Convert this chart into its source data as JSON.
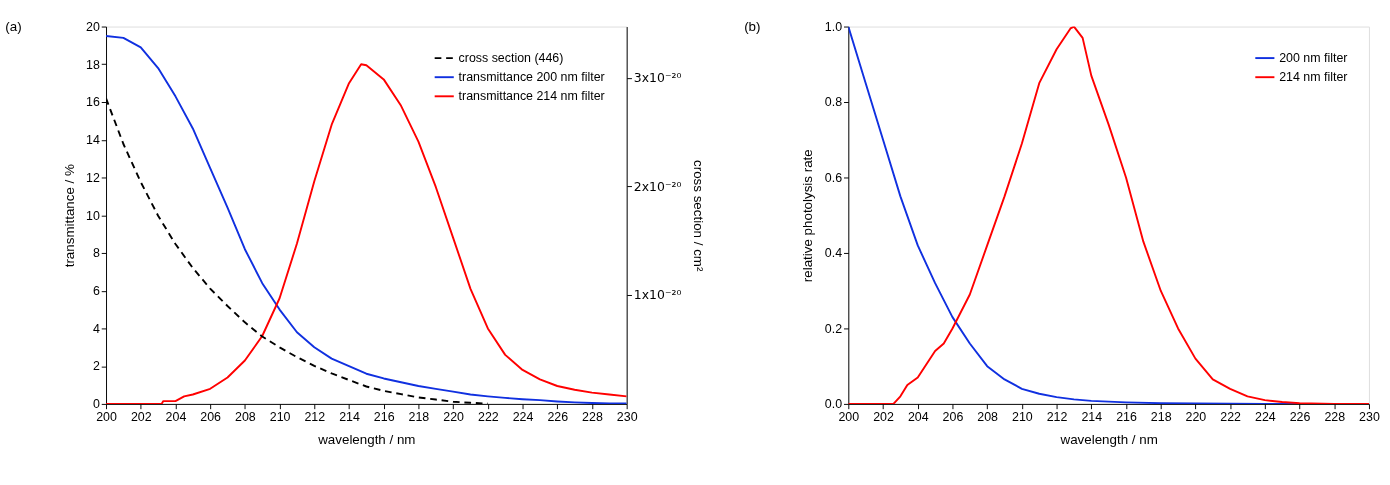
{
  "chart_data": [
    {
      "type": "line",
      "title": "(a)",
      "xlabel": "wavelength / nm",
      "ylabel": "transmittance / %",
      "y2label": "cross section / cm²",
      "xlim": [
        200,
        230
      ],
      "xticks": [
        200,
        202,
        204,
        206,
        208,
        210,
        212,
        214,
        216,
        218,
        220,
        222,
        224,
        226,
        228,
        230
      ],
      "ylim": [
        0,
        20
      ],
      "yticks": [
        0,
        2,
        4,
        6,
        8,
        10,
        12,
        14,
        16,
        18,
        20
      ],
      "y2lim": [
        0,
        3.47e-20
      ],
      "y2ticks": [
        {
          "value": 1e-20,
          "label": "1x10⁻²⁰"
        },
        {
          "value": 2e-20,
          "label": "2x10⁻²⁰"
        },
        {
          "value": 3e-20,
          "label": "3x10⁻²⁰"
        }
      ],
      "grid": false,
      "legend": "top right",
      "series": [
        {
          "name": "cross section (446)",
          "color": "#000000",
          "axis": "y2",
          "line_style": "dashed",
          "x": [
            200,
            201,
            202,
            203,
            204,
            205,
            206,
            207,
            208,
            209,
            210,
            211,
            212,
            213,
            214,
            215,
            216,
            217,
            218,
            219,
            220,
            221,
            222
          ],
          "values": [
            2.81e-20,
            2.39e-20,
            2.04e-20,
            1.73e-20,
            1.47e-20,
            1.25e-20,
            1.06e-20,
            9e-21,
            7.5e-21,
            6.2e-21,
            5.2e-21,
            4.3e-21,
            3.5e-21,
            2.8e-21,
            2.2e-21,
            1.6e-21,
            1.2e-21,
            9e-22,
            6e-22,
            4e-22,
            2e-22,
            1e-22,
            3e-23
          ]
        },
        {
          "name": "transmittance 200 nm filter",
          "color": "#1030e0",
          "line_style": "solid",
          "x": [
            200,
            201,
            202,
            203,
            204,
            205,
            206,
            207,
            208,
            209,
            210,
            211,
            212,
            213,
            214,
            215,
            216,
            217,
            218,
            219,
            220,
            221,
            222,
            223,
            224,
            225,
            226,
            227,
            228,
            229,
            230
          ],
          "values": [
            19.5,
            19.4,
            18.9,
            17.8,
            16.3,
            14.6,
            12.5,
            10.4,
            8.2,
            6.4,
            5.0,
            3.8,
            3.0,
            2.4,
            2.0,
            1.6,
            1.35,
            1.15,
            0.95,
            0.8,
            0.65,
            0.5,
            0.4,
            0.32,
            0.25,
            0.2,
            0.13,
            0.08,
            0.05,
            0.03,
            0.02
          ]
        },
        {
          "name": "transmittance 214 nm filter",
          "color": "#ff0000",
          "line_style": "solid",
          "x": [
            200,
            203.2,
            203.3,
            204,
            204.5,
            205,
            206,
            207,
            208,
            209,
            210,
            211,
            212,
            213,
            214,
            214.7,
            215,
            216,
            217,
            218,
            219,
            220,
            221,
            222,
            223,
            224,
            225,
            226,
            227,
            228,
            229,
            230
          ],
          "values": [
            0,
            0,
            0.15,
            0.15,
            0.4,
            0.5,
            0.8,
            1.4,
            2.3,
            3.6,
            5.6,
            8.5,
            11.8,
            14.8,
            17.0,
            18.0,
            17.95,
            17.2,
            15.8,
            13.9,
            11.5,
            8.8,
            6.1,
            4.0,
            2.6,
            1.8,
            1.3,
            0.95,
            0.75,
            0.6,
            0.5,
            0.4
          ]
        }
      ]
    },
    {
      "type": "line",
      "title": "(b)",
      "xlabel": "wavelength / nm",
      "ylabel": "relative photolysis rate",
      "xlim": [
        200,
        230
      ],
      "xticks": [
        200,
        202,
        204,
        206,
        208,
        210,
        212,
        214,
        216,
        218,
        220,
        222,
        224,
        226,
        228,
        230
      ],
      "ylim": [
        0,
        1
      ],
      "yticks": [
        {
          "value": 0,
          "label": "0.0"
        },
        {
          "value": 0.2,
          "label": "0.2"
        },
        {
          "value": 0.4,
          "label": "0.4"
        },
        {
          "value": 0.6,
          "label": "0.6"
        },
        {
          "value": 0.8,
          "label": "0.8"
        },
        {
          "value": 1,
          "label": "1.0"
        }
      ],
      "grid": false,
      "legend": "top right",
      "series": [
        {
          "name": "200 nm filter",
          "color": "#1030e0",
          "line_style": "solid",
          "x": [
            200,
            201,
            202,
            203,
            204,
            205,
            206,
            207,
            208,
            209,
            210,
            211,
            212,
            213,
            214,
            216,
            218,
            220,
            224,
            230
          ],
          "values": [
            1.0,
            0.85,
            0.7,
            0.55,
            0.42,
            0.32,
            0.23,
            0.16,
            0.1,
            0.065,
            0.04,
            0.027,
            0.018,
            0.012,
            0.008,
            0.004,
            0.002,
            0.001,
            0,
            0
          ]
        },
        {
          "name": "214 nm filter",
          "color": "#ff0000",
          "line_style": "solid",
          "x": [
            200,
            202.6,
            203,
            203.4,
            204,
            205,
            205.5,
            206,
            207,
            208,
            209,
            210,
            211,
            212,
            212.8,
            213,
            213.5,
            214,
            215,
            216,
            217,
            218,
            219,
            220,
            221,
            222,
            223,
            224,
            225,
            226,
            228,
            230
          ],
          "values": [
            0,
            0,
            0.02,
            0.05,
            0.07,
            0.14,
            0.16,
            0.2,
            0.29,
            0.42,
            0.55,
            0.69,
            0.85,
            0.94,
            0.995,
            1.0,
            0.97,
            0.87,
            0.74,
            0.6,
            0.43,
            0.3,
            0.2,
            0.12,
            0.065,
            0.04,
            0.02,
            0.01,
            0.005,
            0.002,
            0,
            0
          ]
        }
      ]
    }
  ]
}
